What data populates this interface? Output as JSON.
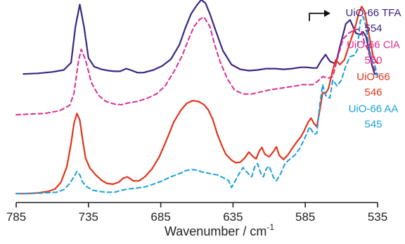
{
  "chart_data": {
    "type": "line",
    "x_axis": {
      "label": "Wavenumber / cm",
      "label_superscript": "-1",
      "reversed": true,
      "range": [
        785,
        535
      ],
      "ticks": [
        785,
        735,
        685,
        635,
        585,
        535
      ],
      "tick_labels": [
        "785",
        "735",
        "685",
        "635",
        "585",
        "535"
      ]
    },
    "y_axis": {
      "label": "",
      "ticks_shown": false
    },
    "grid": false,
    "legend_placement": "right",
    "series": [
      {
        "name": "UiO-66 TFA",
        "peak_label": "554",
        "color": "#3b2583",
        "dash": "solid",
        "arrow_color": "#111111",
        "points": [
          [
            780,
            1.84
          ],
          [
            770,
            1.85
          ],
          [
            760,
            1.87
          ],
          [
            752,
            1.9
          ],
          [
            747,
            2.01
          ],
          [
            744,
            2.55
          ],
          [
            741,
            2.88
          ],
          [
            738,
            2.54
          ],
          [
            735,
            2.08
          ],
          [
            731,
            1.95
          ],
          [
            726,
            1.91
          ],
          [
            721,
            1.89
          ],
          [
            717,
            1.88
          ],
          [
            713,
            1.88
          ],
          [
            709,
            1.92
          ],
          [
            706,
            1.9
          ],
          [
            701,
            1.86
          ],
          [
            697,
            1.86
          ],
          [
            690,
            1.9
          ],
          [
            684,
            1.96
          ],
          [
            678,
            2.06
          ],
          [
            672,
            2.28
          ],
          [
            668,
            2.53
          ],
          [
            664,
            2.74
          ],
          [
            660,
            2.87
          ],
          [
            657,
            2.95
          ],
          [
            654,
            2.9
          ],
          [
            651,
            2.74
          ],
          [
            647,
            2.49
          ],
          [
            642,
            2.19
          ],
          [
            636,
            1.98
          ],
          [
            630,
            1.91
          ],
          [
            624,
            1.89
          ],
          [
            618,
            1.9
          ],
          [
            612,
            1.92
          ],
          [
            606,
            1.92
          ],
          [
            600,
            1.91
          ],
          [
            594,
            1.92
          ],
          [
            588,
            1.94
          ],
          [
            584,
            1.94
          ],
          [
            580,
            1.93
          ],
          [
            577,
            1.93
          ],
          [
            574,
            2.04
          ],
          [
            571,
            2.13
          ],
          [
            568,
            2.03
          ],
          [
            564,
            1.99
          ],
          [
            561,
            2.25
          ],
          [
            557,
            2.59
          ],
          [
            554,
            2.65
          ],
          [
            550,
            2.45
          ],
          [
            547,
            2.43
          ],
          [
            545,
            2.47
          ],
          [
            543,
            2.4
          ],
          [
            541,
            2.2
          ],
          [
            539,
            1.98
          ],
          [
            537,
            1.84
          ],
          [
            535,
            1.84
          ]
        ]
      },
      {
        "name": "UiO-66 ClA",
        "peak_label": "550",
        "color": "#de2c8e",
        "dash": "dashed",
        "points": [
          [
            785,
            1.23
          ],
          [
            775,
            1.24
          ],
          [
            765,
            1.25
          ],
          [
            755,
            1.29
          ],
          [
            748,
            1.37
          ],
          [
            745,
            1.55
          ],
          [
            742,
            2.02
          ],
          [
            740,
            2.21
          ],
          [
            737,
            2.05
          ],
          [
            733,
            1.71
          ],
          [
            728,
            1.52
          ],
          [
            723,
            1.43
          ],
          [
            717,
            1.39
          ],
          [
            712,
            1.38
          ],
          [
            707,
            1.41
          ],
          [
            701,
            1.43
          ],
          [
            694,
            1.48
          ],
          [
            688,
            1.54
          ],
          [
            682,
            1.66
          ],
          [
            676,
            1.87
          ],
          [
            670,
            2.12
          ],
          [
            666,
            2.35
          ],
          [
            662,
            2.55
          ],
          [
            658,
            2.66
          ],
          [
            655,
            2.69
          ],
          [
            651,
            2.55
          ],
          [
            648,
            2.3
          ],
          [
            644,
            2.03
          ],
          [
            639,
            1.77
          ],
          [
            634,
            1.6
          ],
          [
            628,
            1.54
          ],
          [
            622,
            1.54
          ],
          [
            616,
            1.57
          ],
          [
            610,
            1.6
          ],
          [
            604,
            1.62
          ],
          [
            598,
            1.64
          ],
          [
            592,
            1.66
          ],
          [
            587,
            1.68
          ],
          [
            583,
            1.68
          ],
          [
            580,
            1.68
          ],
          [
            577,
            1.72
          ],
          [
            573,
            1.8
          ],
          [
            569,
            1.78
          ],
          [
            566,
            1.8
          ],
          [
            563,
            2.05
          ],
          [
            559,
            2.36
          ],
          [
            555,
            2.45
          ],
          [
            551,
            2.5
          ],
          [
            548,
            2.51
          ],
          [
            546,
            2.47
          ],
          [
            544,
            2.3
          ],
          [
            542,
            2.22
          ],
          [
            540,
            2.07
          ],
          [
            537,
            1.9
          ],
          [
            535,
            1.82
          ]
        ]
      },
      {
        "name": "UiO-66",
        "peak_label": "546",
        "color": "#e2341d",
        "dash": "solid",
        "points": [
          [
            785,
            0.05
          ],
          [
            778,
            0.05
          ],
          [
            770,
            0.06
          ],
          [
            763,
            0.08
          ],
          [
            758,
            0.12
          ],
          [
            754,
            0.22
          ],
          [
            750,
            0.45
          ],
          [
            747,
            0.8
          ],
          [
            745,
            1.1
          ],
          [
            743,
            1.25
          ],
          [
            741,
            1.15
          ],
          [
            739,
            0.85
          ],
          [
            737,
            0.58
          ],
          [
            734,
            0.43
          ],
          [
            730,
            0.33
          ],
          [
            726,
            0.25
          ],
          [
            722,
            0.2
          ],
          [
            718,
            0.19
          ],
          [
            714,
            0.22
          ],
          [
            711,
            0.28
          ],
          [
            708,
            0.3
          ],
          [
            704,
            0.24
          ],
          [
            700,
            0.24
          ],
          [
            696,
            0.3
          ],
          [
            691,
            0.42
          ],
          [
            686,
            0.6
          ],
          [
            681,
            0.85
          ],
          [
            676,
            1.12
          ],
          [
            671,
            1.3
          ],
          [
            667,
            1.4
          ],
          [
            663,
            1.44
          ],
          [
            659,
            1.43
          ],
          [
            655,
            1.38
          ],
          [
            652,
            1.3
          ],
          [
            649,
            1.16
          ],
          [
            646,
            0.95
          ],
          [
            643,
            0.78
          ],
          [
            640,
            0.64
          ],
          [
            636,
            0.55
          ],
          [
            633,
            0.51
          ],
          [
            630,
            0.52
          ],
          [
            627,
            0.58
          ],
          [
            624,
            0.67
          ],
          [
            621,
            0.6
          ],
          [
            619,
            0.57
          ],
          [
            617,
            0.68
          ],
          [
            615,
            0.74
          ],
          [
            613,
            0.64
          ],
          [
            610,
            0.6
          ],
          [
            607,
            0.68
          ],
          [
            605,
            0.75
          ],
          [
            603,
            0.62
          ],
          [
            600,
            0.56
          ],
          [
            597,
            0.63
          ],
          [
            594,
            0.73
          ],
          [
            591,
            0.82
          ],
          [
            588,
            0.9
          ],
          [
            586,
            0.98
          ],
          [
            583,
            1.12
          ],
          [
            581,
            1.18
          ],
          [
            579,
            1.1
          ],
          [
            577,
            1.05
          ],
          [
            575,
            1.3
          ],
          [
            573,
            1.56
          ],
          [
            571,
            1.55
          ],
          [
            569,
            1.62
          ],
          [
            566,
            1.9
          ],
          [
            564,
            2.05
          ],
          [
            561,
            1.98
          ],
          [
            558,
            2.05
          ],
          [
            556,
            2.18
          ],
          [
            553,
            2.38
          ],
          [
            550,
            2.58
          ],
          [
            548,
            2.75
          ],
          [
            546,
            2.85
          ],
          [
            544,
            2.78
          ],
          [
            542,
            2.55
          ],
          [
            540,
            2.32
          ],
          [
            538,
            2.1
          ],
          [
            536,
            2.02
          ],
          [
            535,
            2.0
          ]
        ]
      },
      {
        "name": "UiO-66 AA",
        "peak_label": "545",
        "color": "#1aa0d8",
        "dash": "dashed",
        "points": [
          [
            785,
            0.05
          ],
          [
            775,
            0.05
          ],
          [
            765,
            0.06
          ],
          [
            757,
            0.07
          ],
          [
            752,
            0.11
          ],
          [
            748,
            0.2
          ],
          [
            745,
            0.3
          ],
          [
            743,
            0.38
          ],
          [
            741,
            0.33
          ],
          [
            739,
            0.22
          ],
          [
            736,
            0.15
          ],
          [
            732,
            0.1
          ],
          [
            727,
            0.08
          ],
          [
            722,
            0.07
          ],
          [
            717,
            0.07
          ],
          [
            712,
            0.1
          ],
          [
            707,
            0.12
          ],
          [
            702,
            0.13
          ],
          [
            696,
            0.15
          ],
          [
            690,
            0.19
          ],
          [
            684,
            0.24
          ],
          [
            678,
            0.3
          ],
          [
            672,
            0.35
          ],
          [
            668,
            0.39
          ],
          [
            664,
            0.41
          ],
          [
            660,
            0.4
          ],
          [
            656,
            0.37
          ],
          [
            651,
            0.35
          ],
          [
            646,
            0.33
          ],
          [
            642,
            0.29
          ],
          [
            638,
            0.24
          ],
          [
            636,
            0.14
          ],
          [
            634,
            0.22
          ],
          [
            631,
            0.34
          ],
          [
            628,
            0.44
          ],
          [
            625,
            0.36
          ],
          [
            622,
            0.3
          ],
          [
            620,
            0.45
          ],
          [
            618,
            0.5
          ],
          [
            616,
            0.36
          ],
          [
            614,
            0.3
          ],
          [
            612,
            0.42
          ],
          [
            610,
            0.46
          ],
          [
            607,
            0.29
          ],
          [
            605,
            0.24
          ],
          [
            602,
            0.35
          ],
          [
            599,
            0.5
          ],
          [
            596,
            0.56
          ],
          [
            592,
            0.63
          ],
          [
            589,
            0.72
          ],
          [
            586,
            0.85
          ],
          [
            584,
            0.95
          ],
          [
            582,
            1.05
          ],
          [
            579,
            0.94
          ],
          [
            577,
            0.95
          ],
          [
            575,
            1.38
          ],
          [
            573,
            1.68
          ],
          [
            571,
            1.52
          ],
          [
            568,
            1.48
          ],
          [
            566,
            1.75
          ],
          [
            563,
            1.66
          ],
          [
            560,
            1.75
          ],
          [
            557,
            1.96
          ],
          [
            554,
            2.1
          ],
          [
            551,
            2.12
          ],
          [
            549,
            2.2
          ],
          [
            547,
            2.63
          ],
          [
            545,
            2.7
          ],
          [
            543,
            2.55
          ],
          [
            541,
            2.25
          ],
          [
            539,
            2.05
          ],
          [
            537,
            1.98
          ],
          [
            535,
            1.8
          ]
        ]
      }
    ],
    "annotations": [
      {
        "type": "arrow",
        "direction": "right",
        "attached_to": "UiO-66 TFA"
      }
    ]
  }
}
